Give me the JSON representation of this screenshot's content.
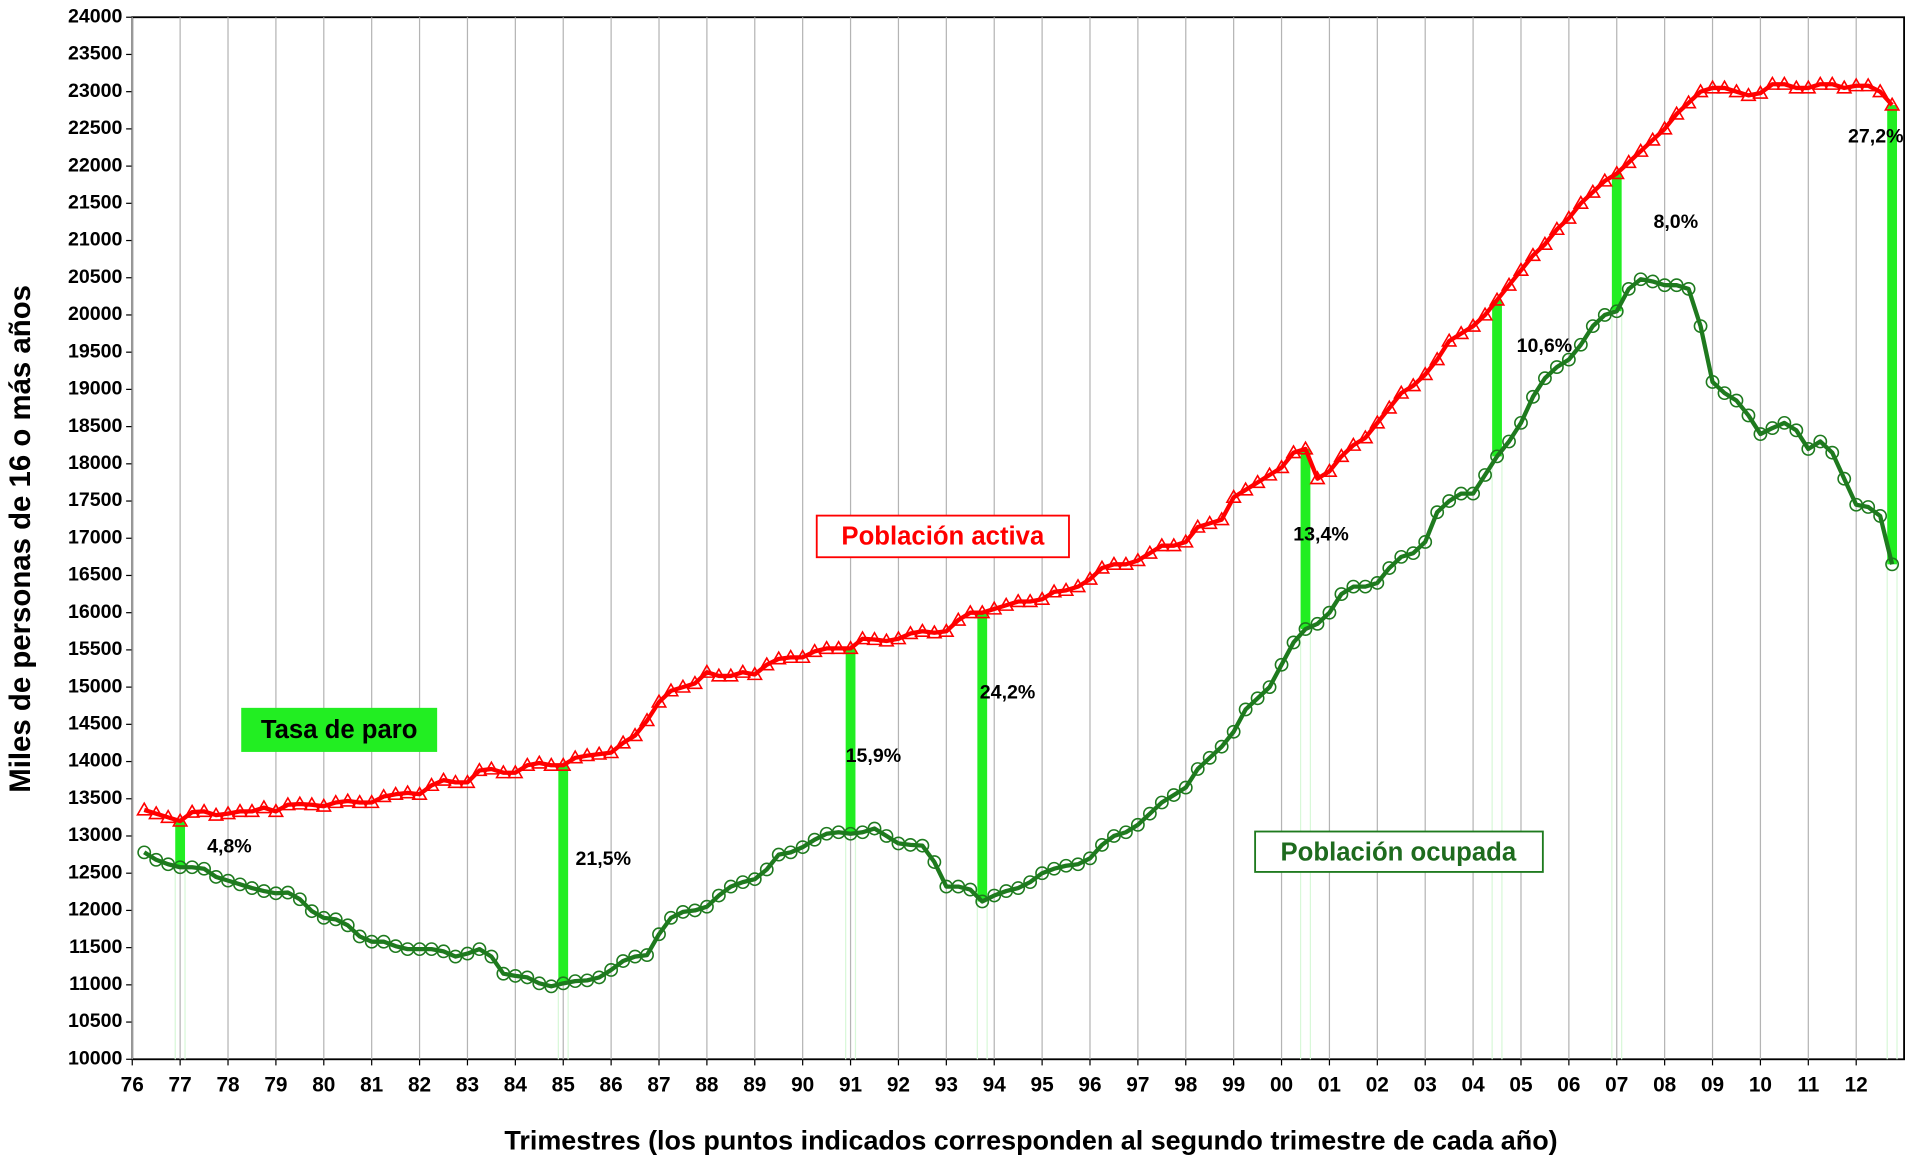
{
  "chart_data": {
    "type": "line",
    "y_label": "Miles de personas de 16 o más años",
    "x_label": "Trimestres (los puntos indicados corresponden al segundo trimestre de cada año)",
    "annotations": [
      "Tasa de paro"
    ],
    "xlim": [
      1976.25,
      2013.25
    ],
    "xticks": [
      {
        "value": 1976.25,
        "label": "76"
      },
      {
        "value": 1977.25,
        "label": "77"
      },
      {
        "value": 1978.25,
        "label": "78"
      },
      {
        "value": 1979.25,
        "label": "79"
      },
      {
        "value": 1980.25,
        "label": "80"
      },
      {
        "value": 1981.25,
        "label": "81"
      },
      {
        "value": 1982.25,
        "label": "82"
      },
      {
        "value": 1983.25,
        "label": "83"
      },
      {
        "value": 1984.25,
        "label": "84"
      },
      {
        "value": 1985.25,
        "label": "85"
      },
      {
        "value": 1986.25,
        "label": "86"
      },
      {
        "value": 1987.25,
        "label": "87"
      },
      {
        "value": 1988.25,
        "label": "88"
      },
      {
        "value": 1989.25,
        "label": "89"
      },
      {
        "value": 1990.25,
        "label": "90"
      },
      {
        "value": 1991.25,
        "label": "91"
      },
      {
        "value": 1992.25,
        "label": "92"
      },
      {
        "value": 1993.25,
        "label": "93"
      },
      {
        "value": 1994.25,
        "label": "94"
      },
      {
        "value": 1995.25,
        "label": "95"
      },
      {
        "value": 1996.25,
        "label": "96"
      },
      {
        "value": 1997.25,
        "label": "97"
      },
      {
        "value": 1998.25,
        "label": "98"
      },
      {
        "value": 1999.25,
        "label": "99"
      },
      {
        "value": 2000.25,
        "label": "00"
      },
      {
        "value": 2001.25,
        "label": "01"
      },
      {
        "value": 2002.25,
        "label": "02"
      },
      {
        "value": 2003.25,
        "label": "03"
      },
      {
        "value": 2004.25,
        "label": "04"
      },
      {
        "value": 2005.25,
        "label": "05"
      },
      {
        "value": 2006.25,
        "label": "06"
      },
      {
        "value": 2007.25,
        "label": "07"
      },
      {
        "value": 2008.25,
        "label": "08"
      },
      {
        "value": 2009.25,
        "label": "09"
      },
      {
        "value": 2010.25,
        "label": "10"
      },
      {
        "value": 2011.25,
        "label": "11"
      },
      {
        "value": 2012.25,
        "label": "12"
      }
    ],
    "ylim": [
      10000,
      24000
    ],
    "yticks": [
      10000,
      10500,
      11000,
      11500,
      12000,
      12500,
      13000,
      13500,
      14000,
      14500,
      15000,
      15500,
      16000,
      16500,
      17000,
      17500,
      18000,
      18500,
      19000,
      19500,
      20000,
      20500,
      21000,
      21500,
      22000,
      22500,
      23000,
      23500,
      24000
    ],
    "grid": "x",
    "x": [
      1976.5,
      1976.75,
      1977,
      1977.25,
      1977.5,
      1977.75,
      1978,
      1978.25,
      1978.5,
      1978.75,
      1979,
      1979.25,
      1979.5,
      1979.75,
      1980,
      1980.25,
      1980.5,
      1980.75,
      1981,
      1981.25,
      1981.5,
      1981.75,
      1982,
      1982.25,
      1982.5,
      1982.75,
      1983,
      1983.25,
      1983.5,
      1983.75,
      1984,
      1984.25,
      1984.5,
      1984.75,
      1985,
      1985.25,
      1985.5,
      1985.75,
      1986,
      1986.25,
      1986.5,
      1986.75,
      1987,
      1987.25,
      1987.5,
      1987.75,
      1988,
      1988.25,
      1988.5,
      1988.75,
      1989,
      1989.25,
      1989.5,
      1989.75,
      1990,
      1990.25,
      1990.5,
      1990.75,
      1991,
      1991.25,
      1991.5,
      1991.75,
      1992,
      1992.25,
      1992.5,
      1992.75,
      1993,
      1993.25,
      1993.5,
      1993.75,
      1994,
      1994.25,
      1994.5,
      1994.75,
      1995,
      1995.25,
      1995.5,
      1995.75,
      1996,
      1996.25,
      1996.5,
      1996.75,
      1997,
      1997.25,
      1997.5,
      1997.75,
      1998,
      1998.25,
      1998.5,
      1998.75,
      1999,
      1999.25,
      1999.5,
      1999.75,
      2000,
      2000.25,
      2000.5,
      2000.75,
      2001,
      2001.25,
      2001.5,
      2001.75,
      2002,
      2002.25,
      2002.5,
      2002.75,
      2003,
      2003.25,
      2003.5,
      2003.75,
      2004,
      2004.25,
      2004.5,
      2004.75,
      2005,
      2005.25,
      2005.5,
      2005.75,
      2006,
      2006.25,
      2006.5,
      2006.75,
      2007,
      2007.25,
      2007.5,
      2007.75,
      2008,
      2008.25,
      2008.5,
      2008.75,
      2009,
      2009.25,
      2009.5,
      2009.75,
      2010,
      2010.25,
      2010.5,
      2010.75,
      2011,
      2011.25,
      2011.5,
      2011.75,
      2012,
      2012.25,
      2012.5,
      2012.75,
      2013
    ],
    "series": [
      {
        "name": "Población activa",
        "color": "#ff0000",
        "marker": "triangle",
        "values": [
          13350,
          13300,
          13250,
          13200,
          13320,
          13330,
          13280,
          13300,
          13330,
          13330,
          13380,
          13330,
          13420,
          13430,
          13420,
          13400,
          13450,
          13470,
          13450,
          13450,
          13530,
          13560,
          13580,
          13560,
          13680,
          13750,
          13720,
          13720,
          13880,
          13900,
          13850,
          13850,
          13950,
          13980,
          13950,
          13950,
          14050,
          14080,
          14100,
          14120,
          14250,
          14350,
          14550,
          14800,
          14950,
          15000,
          15050,
          15200,
          15150,
          15150,
          15200,
          15170,
          15300,
          15380,
          15400,
          15400,
          15480,
          15520,
          15520,
          15520,
          15650,
          15640,
          15620,
          15650,
          15720,
          15750,
          15730,
          15750,
          15900,
          16000,
          16000,
          16050,
          16100,
          16150,
          16150,
          16180,
          16280,
          16300,
          16350,
          16450,
          16600,
          16650,
          16650,
          16700,
          16800,
          16900,
          16900,
          16950,
          17150,
          17200,
          17250,
          17550,
          17650,
          17750,
          17850,
          17950,
          18150,
          18200,
          17800,
          17900,
          18100,
          18250,
          18350,
          18550,
          18750,
          18950,
          19050,
          19200,
          19400,
          19650,
          19750,
          19850,
          20000,
          20200,
          20400,
          20600,
          20800,
          20950,
          21150,
          21300,
          21500,
          21650,
          21800,
          21900,
          22050,
          22200,
          22350,
          22500,
          22700,
          22850,
          23000,
          23050,
          23050,
          23000,
          22950,
          22980,
          23100,
          23100,
          23050,
          23050,
          23100,
          23100,
          23050,
          23080,
          23080,
          23000,
          22820
        ]
      },
      {
        "name": "Población ocupada",
        "color": "#1e7a1e",
        "marker": "circle",
        "values": [
          12780,
          12680,
          12620,
          12580,
          12580,
          12560,
          12450,
          12400,
          12350,
          12300,
          12260,
          12230,
          12240,
          12150,
          11990,
          11900,
          11880,
          11800,
          11650,
          11580,
          11580,
          11520,
          11480,
          11480,
          11480,
          11450,
          11380,
          11420,
          11480,
          11380,
          11150,
          11120,
          11100,
          11020,
          10980,
          11020,
          11050,
          11060,
          11100,
          11200,
          11320,
          11380,
          11400,
          11680,
          11900,
          11980,
          12000,
          12050,
          12200,
          12320,
          12380,
          12420,
          12550,
          12750,
          12780,
          12850,
          12950,
          13030,
          13050,
          13030,
          13050,
          13100,
          13000,
          12900,
          12880,
          12870,
          12650,
          12320,
          12320,
          12280,
          12120,
          12200,
          12260,
          12300,
          12380,
          12500,
          12560,
          12600,
          12620,
          12700,
          12880,
          13000,
          13050,
          13150,
          13300,
          13450,
          13550,
          13650,
          13900,
          14050,
          14200,
          14400,
          14700,
          14850,
          15000,
          15300,
          15600,
          15780,
          15850,
          16000,
          16250,
          16350,
          16350,
          16400,
          16600,
          16750,
          16800,
          16950,
          17350,
          17500,
          17600,
          17600,
          17850,
          18100,
          18300,
          18550,
          18900,
          19150,
          19300,
          19400,
          19600,
          19850,
          20000,
          20050,
          20350,
          20480,
          20450,
          20400,
          20400,
          20350,
          19850,
          19100,
          18950,
          18850,
          18650,
          18400,
          18480,
          18550,
          18450,
          18200,
          18300,
          18150,
          17800,
          17450,
          17420,
          17300,
          16650
        ]
      }
    ],
    "unemployment": {
      "color": "#22ee22",
      "x": [
        1977.25,
        1985.25,
        1991.25,
        1994,
        2000.75,
        2004.75,
        2007.25,
        2013
      ],
      "values": [
        4.8,
        21.5,
        15.9,
        24.2,
        13.4,
        10.6,
        8.0,
        27.2
      ],
      "value_labels": [
        "4,8%",
        "21,5%",
        "15,9%",
        "24,2%",
        "13,4%",
        "10,6%",
        "8,0%",
        "27,2%"
      ]
    }
  }
}
